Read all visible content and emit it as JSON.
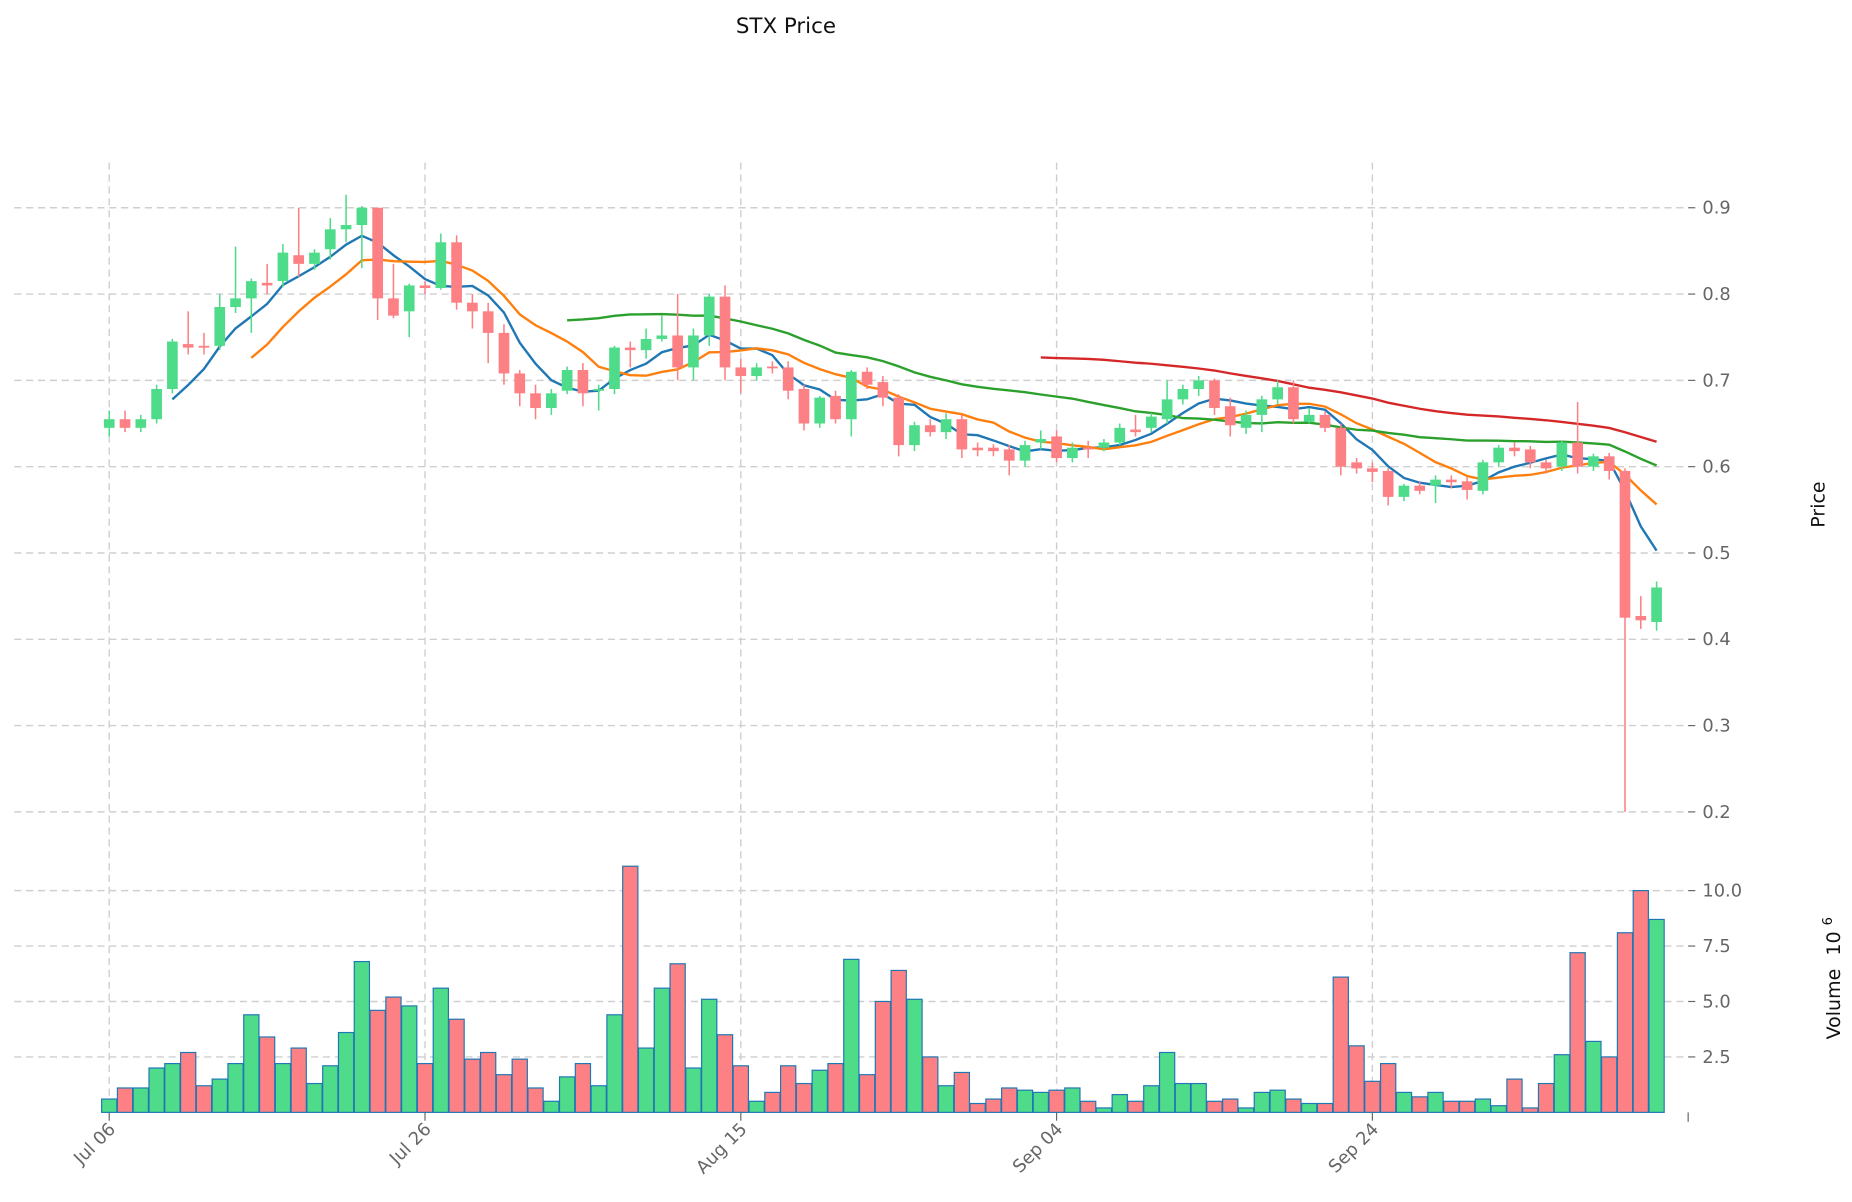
{
  "chart_data": {
    "type": "candlestick",
    "title": "STX Price",
    "ylabel": "Price",
    "volume_label": "Volume",
    "volume_exponent": "10",
    "volume_exponent_power": "6",
    "start_date": "2024-07-06",
    "xticks": [
      {
        "index": 0,
        "label": "Jul 06"
      },
      {
        "index": 20,
        "label": "Jul 26"
      },
      {
        "index": 40,
        "label": "Aug 15"
      },
      {
        "index": 60,
        "label": "Sep 04"
      },
      {
        "index": 80,
        "label": "Sep 24"
      }
    ],
    "price_ticks": [
      "0.2",
      "0.3",
      "0.4",
      "0.5",
      "0.6",
      "0.7",
      "0.8",
      "0.9"
    ],
    "volume_ticks": [
      "2.5",
      "5.0",
      "7.5",
      "10.0"
    ],
    "moving_averages": [
      {
        "window": 5,
        "color": "#1f77b4"
      },
      {
        "window": 10,
        "color": "#ff7f0e"
      },
      {
        "window": 30,
        "color": "#2ca02c"
      },
      {
        "window": 60,
        "color": "#d62728"
      }
    ],
    "colors": {
      "up": "#4fdc8a",
      "down": "#fd8084",
      "volume_edge": "#1f77b4"
    },
    "ohlc": [
      [
        0.645,
        0.665,
        0.635,
        0.655
      ],
      [
        0.655,
        0.665,
        0.64,
        0.645
      ],
      [
        0.645,
        0.66,
        0.64,
        0.655
      ],
      [
        0.655,
        0.695,
        0.65,
        0.69
      ],
      [
        0.69,
        0.748,
        0.685,
        0.745
      ],
      [
        0.742,
        0.78,
        0.73,
        0.738
      ],
      [
        0.74,
        0.755,
        0.73,
        0.738
      ],
      [
        0.74,
        0.8,
        0.735,
        0.785
      ],
      [
        0.785,
        0.855,
        0.778,
        0.795
      ],
      [
        0.795,
        0.818,
        0.755,
        0.815
      ],
      [
        0.813,
        0.835,
        0.8,
        0.81
      ],
      [
        0.815,
        0.858,
        0.808,
        0.848
      ],
      [
        0.845,
        0.9,
        0.82,
        0.835
      ],
      [
        0.835,
        0.852,
        0.828,
        0.848
      ],
      [
        0.852,
        0.888,
        0.84,
        0.875
      ],
      [
        0.875,
        0.915,
        0.86,
        0.88
      ],
      [
        0.88,
        0.902,
        0.83,
        0.9
      ],
      [
        0.9,
        0.9,
        0.77,
        0.795
      ],
      [
        0.795,
        0.835,
        0.772,
        0.775
      ],
      [
        0.78,
        0.812,
        0.75,
        0.81
      ],
      [
        0.81,
        0.815,
        0.8,
        0.807
      ],
      [
        0.807,
        0.87,
        0.805,
        0.86
      ],
      [
        0.86,
        0.868,
        0.782,
        0.79
      ],
      [
        0.79,
        0.8,
        0.76,
        0.78
      ],
      [
        0.78,
        0.79,
        0.72,
        0.755
      ],
      [
        0.755,
        0.765,
        0.695,
        0.708
      ],
      [
        0.708,
        0.712,
        0.67,
        0.685
      ],
      [
        0.685,
        0.695,
        0.655,
        0.668
      ],
      [
        0.668,
        0.69,
        0.66,
        0.685
      ],
      [
        0.688,
        0.716,
        0.684,
        0.712
      ],
      [
        0.712,
        0.72,
        0.67,
        0.685
      ],
      [
        0.688,
        0.695,
        0.665,
        0.69
      ],
      [
        0.69,
        0.74,
        0.684,
        0.738
      ],
      [
        0.738,
        0.745,
        0.715,
        0.735
      ],
      [
        0.735,
        0.76,
        0.725,
        0.748
      ],
      [
        0.748,
        0.775,
        0.745,
        0.752
      ],
      [
        0.752,
        0.8,
        0.7,
        0.715
      ],
      [
        0.715,
        0.76,
        0.7,
        0.752
      ],
      [
        0.752,
        0.8,
        0.74,
        0.797
      ],
      [
        0.797,
        0.81,
        0.7,
        0.715
      ],
      [
        0.715,
        0.725,
        0.685,
        0.705
      ],
      [
        0.705,
        0.72,
        0.7,
        0.715
      ],
      [
        0.716,
        0.722,
        0.708,
        0.714
      ],
      [
        0.715,
        0.722,
        0.678,
        0.688
      ],
      [
        0.69,
        0.695,
        0.642,
        0.65
      ],
      [
        0.65,
        0.682,
        0.645,
        0.68
      ],
      [
        0.682,
        0.688,
        0.65,
        0.655
      ],
      [
        0.655,
        0.712,
        0.635,
        0.71
      ],
      [
        0.71,
        0.715,
        0.69,
        0.695
      ],
      [
        0.698,
        0.705,
        0.67,
        0.68
      ],
      [
        0.68,
        0.684,
        0.612,
        0.625
      ],
      [
        0.625,
        0.652,
        0.618,
        0.648
      ],
      [
        0.648,
        0.655,
        0.635,
        0.64
      ],
      [
        0.64,
        0.662,
        0.632,
        0.655
      ],
      [
        0.655,
        0.66,
        0.61,
        0.62
      ],
      [
        0.622,
        0.628,
        0.612,
        0.619
      ],
      [
        0.622,
        0.626,
        0.612,
        0.618
      ],
      [
        0.62,
        0.625,
        0.59,
        0.607
      ],
      [
        0.607,
        0.63,
        0.6,
        0.625
      ],
      [
        0.628,
        0.642,
        0.62,
        0.632
      ],
      [
        0.635,
        0.642,
        0.605,
        0.61
      ],
      [
        0.61,
        0.628,
        0.605,
        0.622
      ],
      [
        0.622,
        0.63,
        0.61,
        0.62
      ],
      [
        0.622,
        0.632,
        0.618,
        0.628
      ],
      [
        0.628,
        0.65,
        0.625,
        0.645
      ],
      [
        0.643,
        0.66,
        0.635,
        0.64
      ],
      [
        0.645,
        0.662,
        0.64,
        0.658
      ],
      [
        0.655,
        0.7,
        0.65,
        0.678
      ],
      [
        0.678,
        0.695,
        0.672,
        0.69
      ],
      [
        0.69,
        0.705,
        0.682,
        0.7
      ],
      [
        0.7,
        0.702,
        0.66,
        0.668
      ],
      [
        0.67,
        0.68,
        0.635,
        0.648
      ],
      [
        0.645,
        0.665,
        0.638,
        0.66
      ],
      [
        0.66,
        0.682,
        0.64,
        0.678
      ],
      [
        0.678,
        0.7,
        0.672,
        0.692
      ],
      [
        0.692,
        0.7,
        0.65,
        0.655
      ],
      [
        0.652,
        0.668,
        0.65,
        0.66
      ],
      [
        0.66,
        0.664,
        0.64,
        0.645
      ],
      [
        0.645,
        0.65,
        0.59,
        0.6
      ],
      [
        0.605,
        0.61,
        0.592,
        0.598
      ],
      [
        0.598,
        0.605,
        0.582,
        0.594
      ],
      [
        0.595,
        0.598,
        0.555,
        0.565
      ],
      [
        0.565,
        0.58,
        0.56,
        0.578
      ],
      [
        0.578,
        0.582,
        0.568,
        0.572
      ],
      [
        0.578,
        0.59,
        0.558,
        0.585
      ],
      [
        0.585,
        0.59,
        0.575,
        0.582
      ],
      [
        0.583,
        0.588,
        0.562,
        0.573
      ],
      [
        0.572,
        0.608,
        0.568,
        0.605
      ],
      [
        0.605,
        0.625,
        0.6,
        0.622
      ],
      [
        0.622,
        0.628,
        0.612,
        0.618
      ],
      [
        0.62,
        0.624,
        0.598,
        0.605
      ],
      [
        0.605,
        0.608,
        0.592,
        0.598
      ],
      [
        0.6,
        0.63,
        0.595,
        0.628
      ],
      [
        0.628,
        0.675,
        0.592,
        0.6
      ],
      [
        0.6,
        0.615,
        0.595,
        0.612
      ],
      [
        0.612,
        0.616,
        0.585,
        0.595
      ],
      [
        0.595,
        0.598,
        0.2,
        0.425
      ],
      [
        0.427,
        0.45,
        0.412,
        0.422
      ],
      [
        0.42,
        0.467,
        0.41,
        0.46
      ]
    ],
    "volume_millions": [
      0.6,
      1.1,
      1.1,
      2.0,
      2.2,
      2.7,
      1.2,
      1.5,
      2.2,
      4.4,
      3.4,
      2.2,
      2.9,
      1.3,
      2.1,
      3.6,
      6.8,
      4.6,
      5.2,
      4.8,
      2.2,
      5.6,
      4.2,
      2.4,
      2.7,
      1.7,
      2.4,
      1.1,
      0.5,
      1.6,
      2.2,
      1.2,
      4.4,
      11.1,
      2.9,
      5.6,
      6.7,
      2.0,
      5.1,
      3.5,
      2.1,
      0.5,
      0.9,
      2.1,
      1.3,
      1.9,
      2.2,
      6.9,
      1.7,
      5.0,
      6.4,
      5.1,
      2.5,
      1.2,
      1.8,
      0.4,
      0.6,
      1.1,
      1.0,
      0.9,
      1.0,
      1.1,
      0.5,
      0.2,
      0.8,
      0.5,
      1.2,
      2.7,
      1.3,
      1.3,
      0.5,
      0.6,
      0.2,
      0.9,
      1.0,
      0.6,
      0.4,
      0.4,
      6.1,
      3.0,
      1.4,
      2.2,
      0.9,
      0.7,
      0.9,
      0.5,
      0.5,
      0.6,
      0.3,
      1.5,
      0.2,
      1.3,
      2.6,
      7.2,
      3.2,
      2.5,
      8.1,
      10.0,
      8.7
    ],
    "price_range": [
      0.18,
      0.95
    ],
    "volume_range": [
      0,
      11.5
    ],
    "grid": true
  }
}
